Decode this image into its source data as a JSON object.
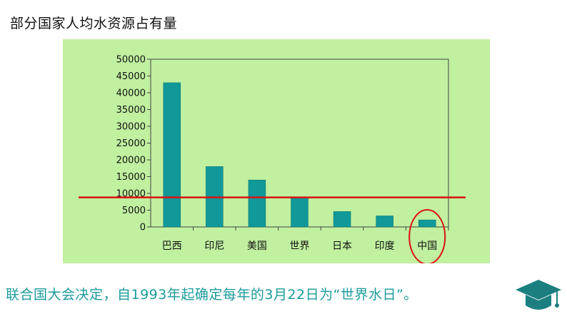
{
  "slide": {
    "title": "部分国家人均水资源占有量",
    "caption": "联合国大会决定，自1993年起确定每年的3月22日为“世界水日”。"
  },
  "colors": {
    "plot_background": "#c0f0a0",
    "bar": "#119999",
    "reference_line": "#dd1111",
    "highlight_circle": "#dd1111",
    "caption_text": "#1b9b9b",
    "icon": "#1b7f7f"
  },
  "icons": {
    "graduation": "graduation-cap-icon"
  },
  "chart_data": {
    "type": "bar",
    "title": "",
    "xlabel": "",
    "ylabel": "",
    "categories": [
      "巴西",
      "印尼",
      "美国",
      "世界",
      "日本",
      "印度",
      "中国"
    ],
    "values": [
      43000,
      18000,
      14000,
      8800,
      4600,
      3300,
      2100
    ],
    "ylim": [
      0,
      50000
    ],
    "yticks": [
      0,
      5000,
      10000,
      15000,
      20000,
      25000,
      30000,
      35000,
      40000,
      45000,
      50000
    ],
    "grid": false,
    "legend": "none",
    "reference_line_value": 8800,
    "highlighted_category": "中国"
  }
}
